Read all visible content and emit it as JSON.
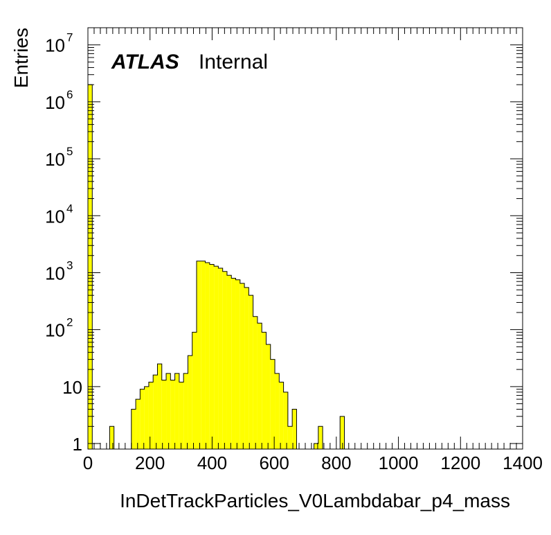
{
  "chart_data": {
    "type": "bar",
    "title": "",
    "xlabel": "InDetTrackParticles_V0Lambdabar_p4_mass",
    "ylabel": "Entries",
    "label_bold": "ATLAS",
    "label_normal": "Internal",
    "xlim": [
      0,
      1400
    ],
    "ylim": [
      0.8,
      20000000
    ],
    "y_scale": "log",
    "grid": false,
    "fill_color": "#ffff00",
    "line_color": "#000000",
    "x_ticks": [
      "0",
      "200",
      "400",
      "600",
      "800",
      "1000",
      "1200",
      "1400"
    ],
    "y_ticks": [
      {
        "base": "1",
        "exp": ""
      },
      {
        "base": "10",
        "exp": ""
      },
      {
        "base": "10",
        "exp": "2"
      },
      {
        "base": "10",
        "exp": "3"
      },
      {
        "base": "10",
        "exp": "4"
      },
      {
        "base": "10",
        "exp": "5"
      },
      {
        "base": "10",
        "exp": "6"
      },
      {
        "base": "10",
        "exp": "7"
      }
    ],
    "bin_width": 14,
    "bin_edges_start": 0,
    "values": [
      2000000,
      0,
      0,
      0,
      0,
      2,
      0,
      0,
      0,
      0,
      4,
      6,
      9,
      10,
      12,
      16,
      25,
      13,
      17,
      13,
      17,
      12,
      17,
      35,
      90,
      1600,
      1600,
      1500,
      1400,
      1300,
      1200,
      1050,
      900,
      800,
      750,
      650,
      550,
      400,
      170,
      130,
      90,
      55,
      30,
      17,
      12,
      8,
      2,
      4,
      0,
      0,
      0,
      0,
      1,
      2,
      0,
      0,
      0,
      0,
      3
    ]
  }
}
